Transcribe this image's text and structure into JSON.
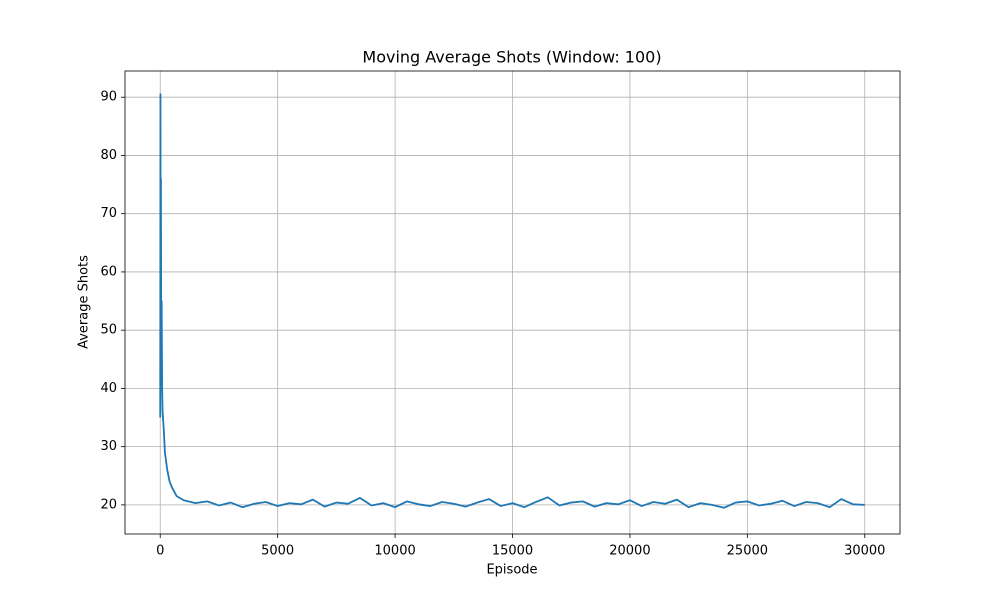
{
  "chart_data": {
    "type": "line",
    "title": "Moving Average Shots (Window: 100)",
    "x_label": "Episode",
    "y_label": "Average Shots",
    "color": "#1f77b4",
    "grid": true,
    "xlim": [
      -1500,
      31500
    ],
    "ylim": [
      15,
      94.5
    ],
    "xticks": [
      0,
      5000,
      10000,
      15000,
      20000,
      25000,
      30000
    ],
    "yticks": [
      20,
      30,
      40,
      50,
      60,
      70,
      80,
      90
    ],
    "x": [
      0,
      10,
      20,
      30,
      40,
      50,
      60,
      80,
      100,
      150,
      200,
      300,
      400,
      500,
      700,
      1000,
      1500,
      2000,
      2500,
      3000,
      3500,
      4000,
      4500,
      5000,
      5500,
      6000,
      6500,
      7000,
      7500,
      8000,
      8500,
      9000,
      9500,
      10000,
      10500,
      11000,
      11500,
      12000,
      12500,
      13000,
      13500,
      14000,
      14500,
      15000,
      15500,
      16000,
      16500,
      17000,
      17500,
      18000,
      18500,
      19000,
      19500,
      20000,
      20500,
      21000,
      21500,
      22000,
      22500,
      23000,
      23500,
      24000,
      24500,
      25000,
      25500,
      26000,
      26500,
      27000,
      27500,
      28000,
      28500,
      29000,
      29500,
      30000
    ],
    "values": [
      35,
      90.5,
      60,
      76,
      50,
      42,
      55,
      40,
      36,
      33,
      29,
      26,
      24,
      23,
      21.5,
      20.8,
      20.3,
      20.6,
      19.9,
      20.4,
      19.6,
      20.2,
      20.5,
      19.8,
      20.3,
      20.1,
      20.9,
      19.7,
      20.4,
      20.2,
      21.2,
      19.9,
      20.3,
      19.6,
      20.6,
      20.1,
      19.8,
      20.5,
      20.2,
      19.7,
      20.4,
      21.0,
      19.8,
      20.3,
      19.6,
      20.5,
      21.3,
      19.9,
      20.4,
      20.6,
      19.7,
      20.3,
      20.1,
      20.8,
      19.8,
      20.5,
      20.2,
      20.9,
      19.6,
      20.3,
      20.0,
      19.5,
      20.4,
      20.6,
      19.9,
      20.2,
      20.7,
      19.8,
      20.5,
      20.3,
      19.6,
      21.0,
      20.1,
      20.0
    ]
  }
}
